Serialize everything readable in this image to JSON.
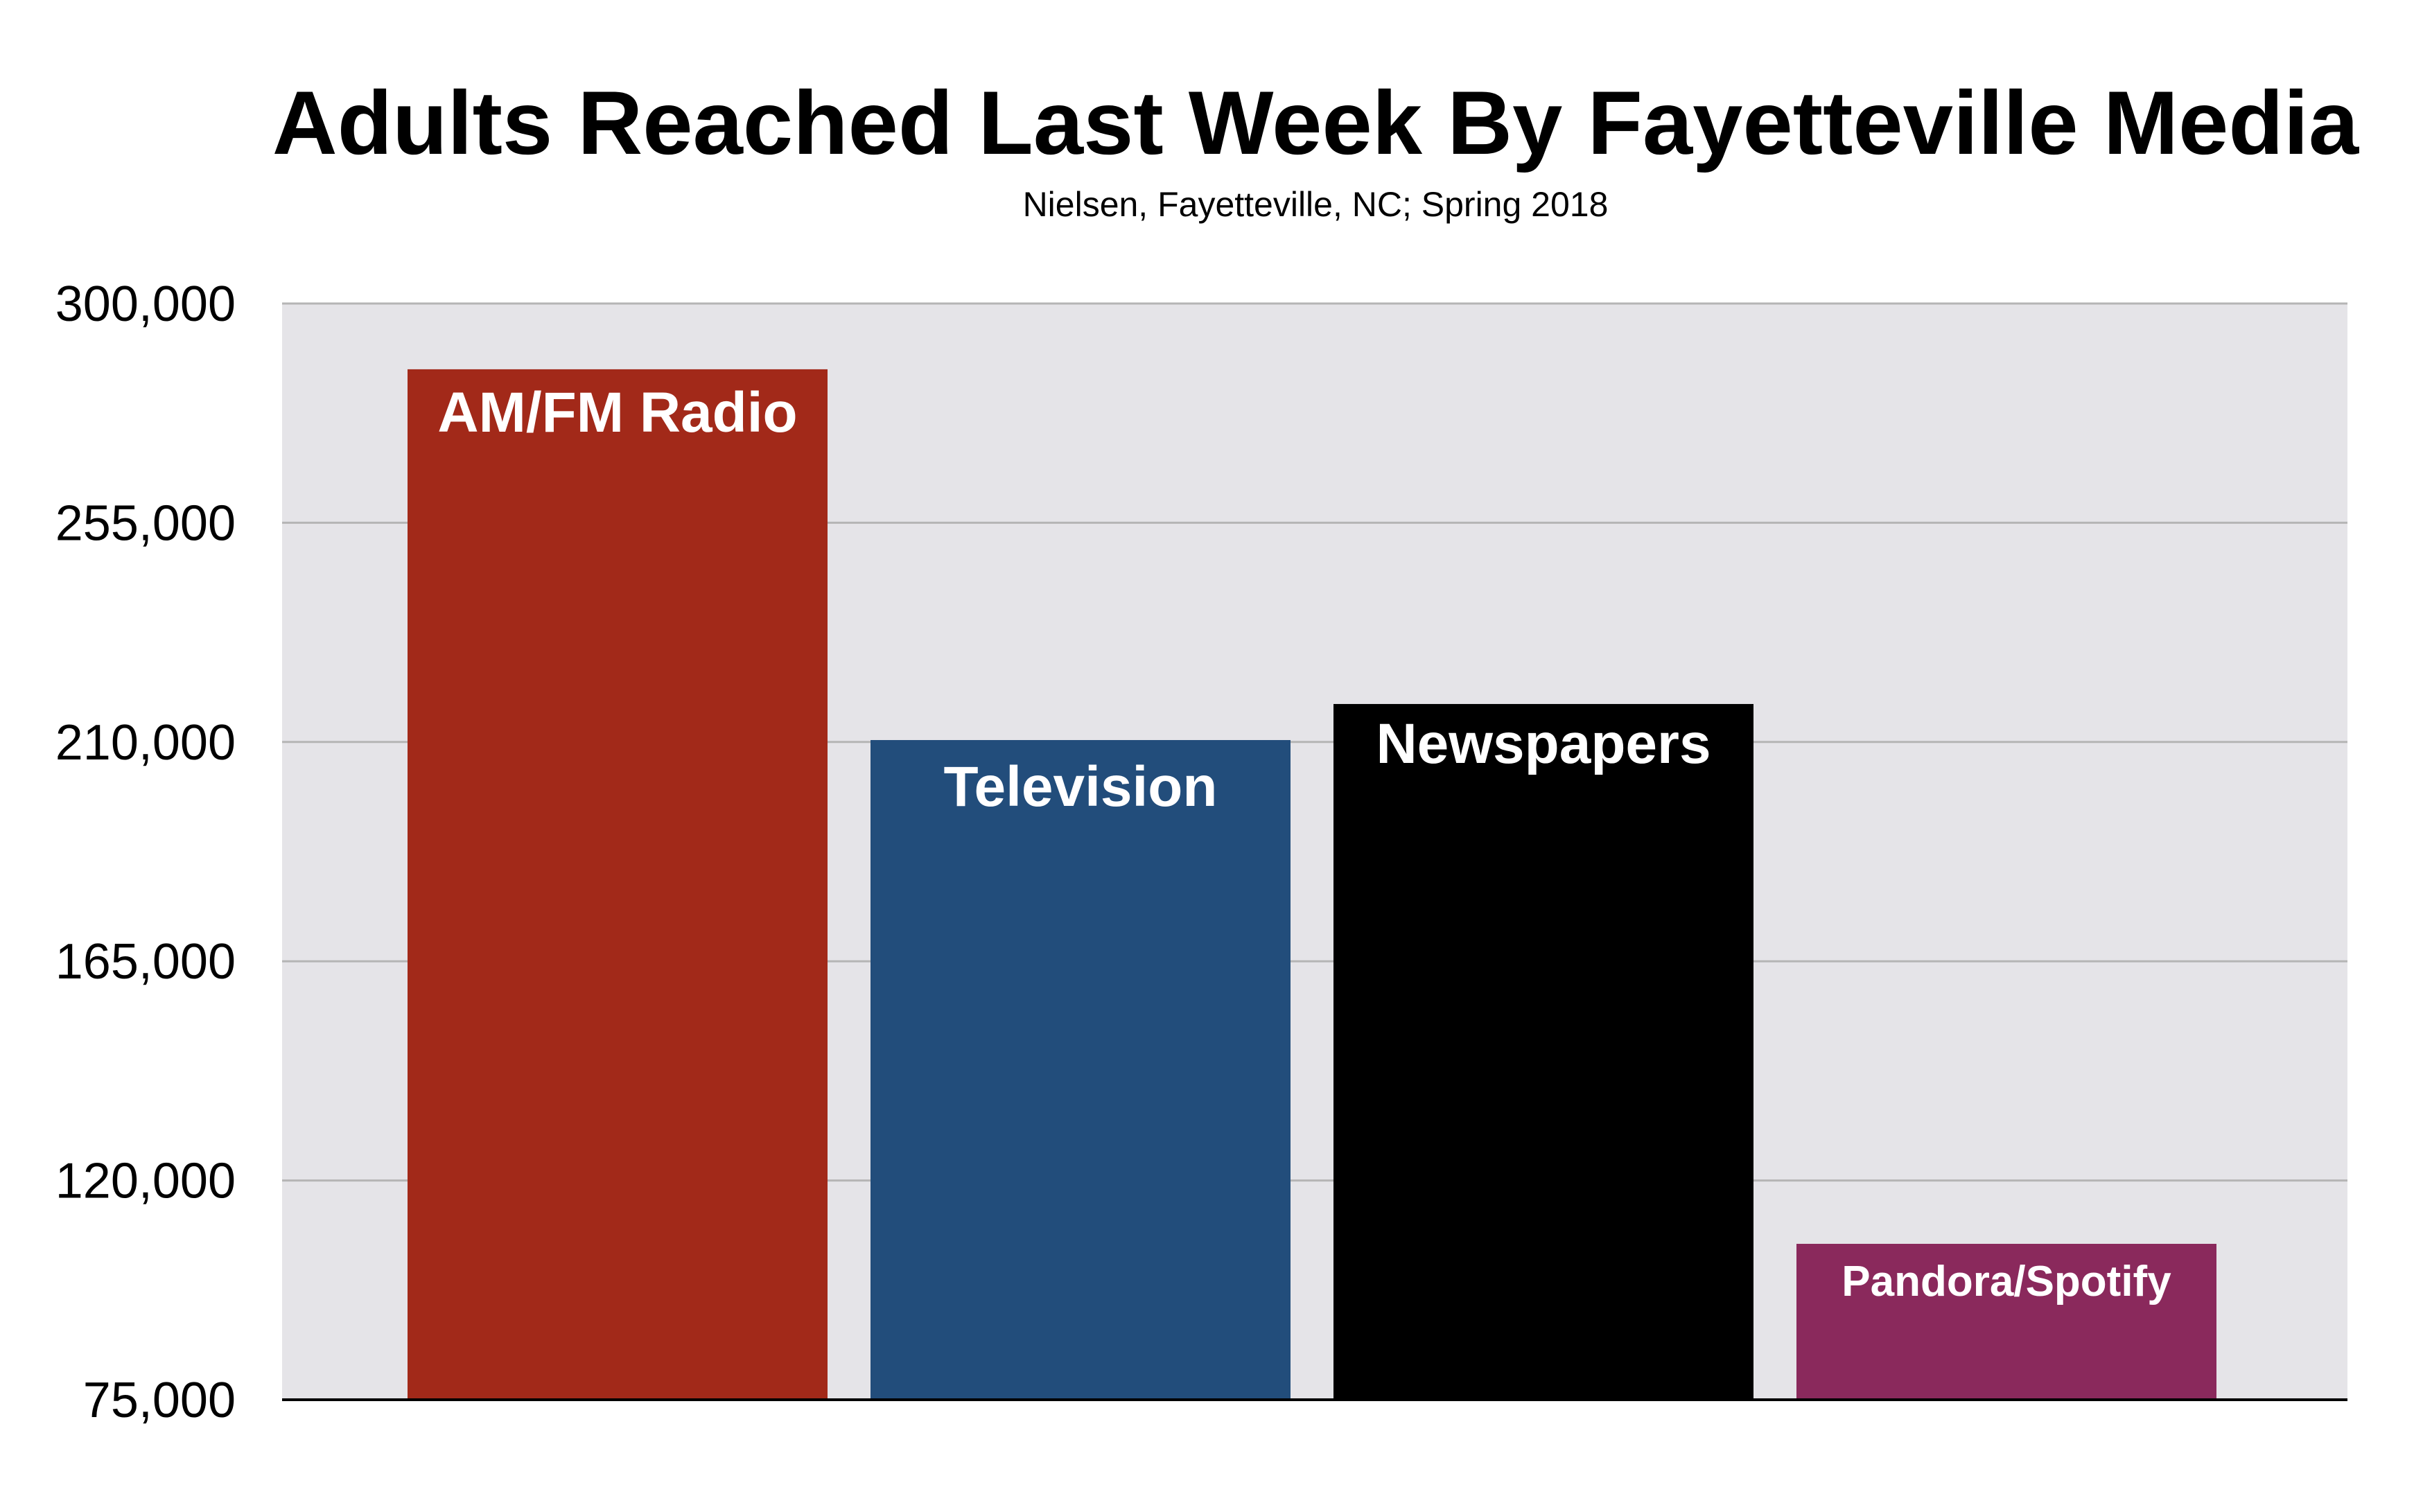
{
  "chart_data": {
    "type": "bar",
    "title": "Adults Reached Last Week By Fayetteville Media",
    "subtitle": "Nielsen, Fayetteville, NC; Spring 2018",
    "xlabel": "",
    "ylabel": "",
    "categories": [
      "AM/FM Radio",
      "Television",
      "Newspapers",
      "Pandora/Spotify"
    ],
    "values": [
      286500,
      210400,
      217800,
      107000
    ],
    "colors": [
      "#a22919",
      "#224d7b",
      "#000000",
      "#8a295c"
    ],
    "ylim": [
      75000,
      300000
    ],
    "yticks": [
      75000,
      120000,
      165000,
      210000,
      255000,
      300000
    ],
    "ytick_labels": [
      "75,000",
      "120,000",
      "165,000",
      "210,000",
      "255,000",
      "300,000"
    ],
    "grid": true,
    "legend": "none",
    "plot_background": "#e5e4e8",
    "gridline_color": "#b5b5b5"
  }
}
